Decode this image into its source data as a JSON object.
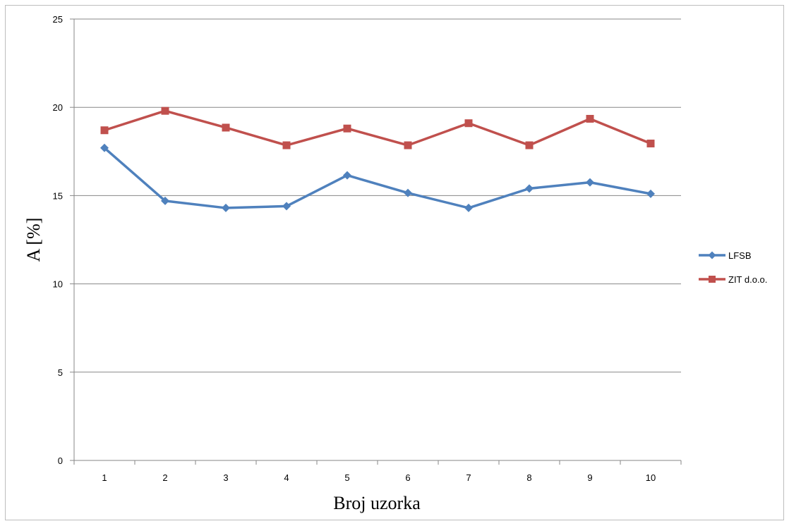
{
  "chart_data": {
    "type": "line",
    "xlabel": "Broj uzorka",
    "ylabel": "A [%]",
    "categories": [
      "1",
      "2",
      "3",
      "4",
      "5",
      "6",
      "7",
      "8",
      "9",
      "10"
    ],
    "ylim": [
      0,
      25
    ],
    "yticks": [
      0,
      5,
      10,
      15,
      20,
      25
    ],
    "grid": "horizontal",
    "legend_position": "right",
    "series": [
      {
        "name": "LFSB",
        "color": "#4f81bd",
        "marker": "diamond",
        "values": [
          17.7,
          14.7,
          14.3,
          14.4,
          16.15,
          15.15,
          14.3,
          15.4,
          15.75,
          15.1
        ]
      },
      {
        "name": "ZIT d.o.o.",
        "color": "#c0504d",
        "marker": "square",
        "values": [
          18.7,
          19.8,
          18.85,
          17.85,
          18.8,
          17.85,
          19.1,
          17.85,
          19.35,
          17.95
        ]
      }
    ]
  }
}
